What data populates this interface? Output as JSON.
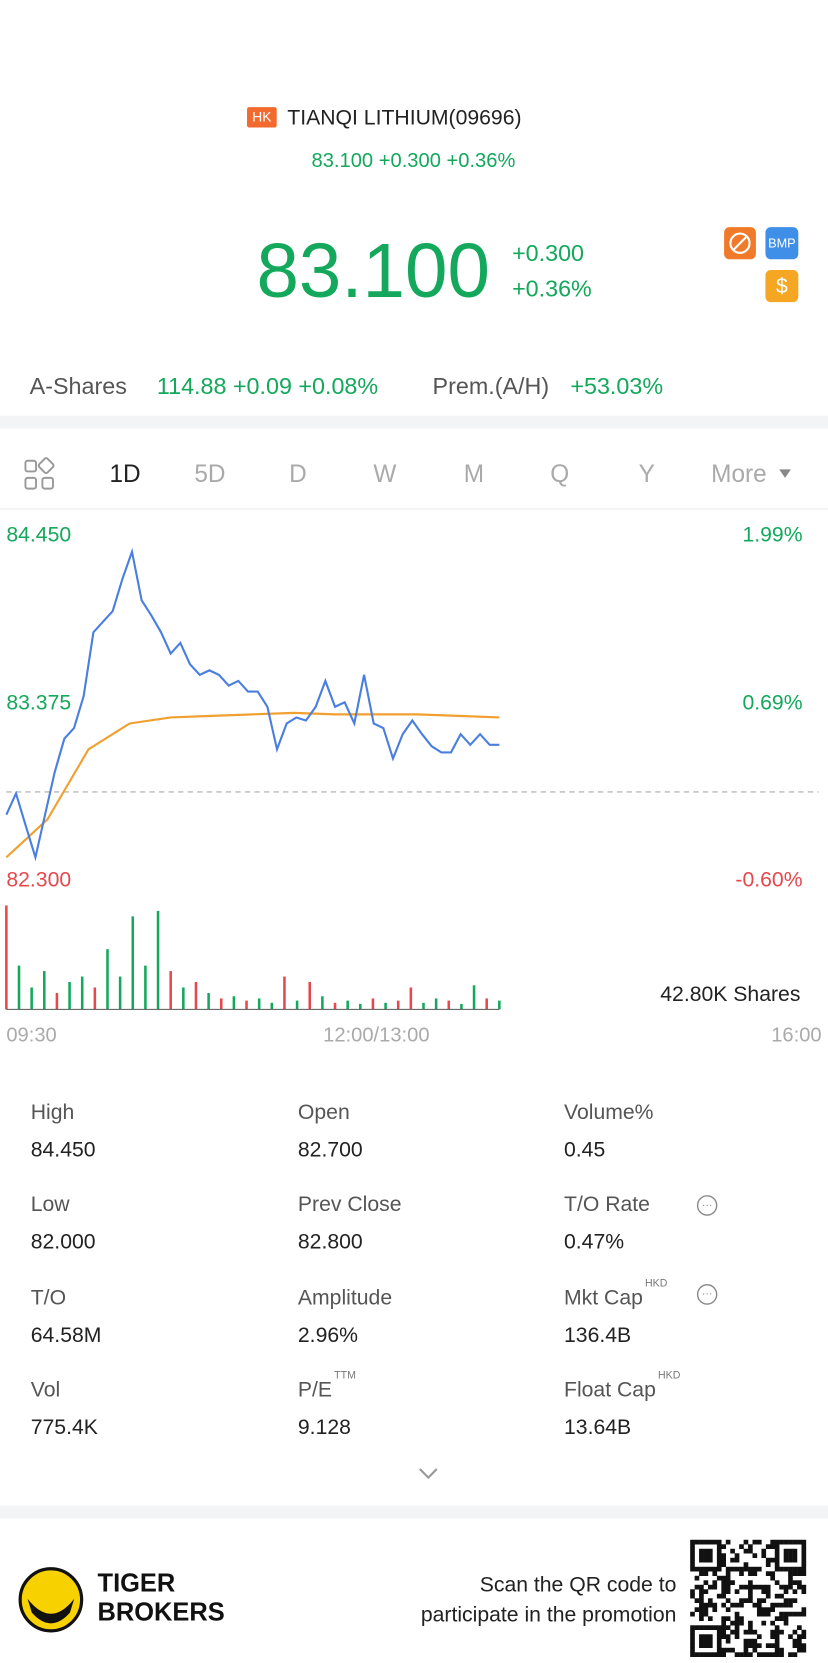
{
  "header": {
    "exchange_badge": "HK",
    "title": "TIANQI LITHIUM(09696)",
    "subtitle": "83.100 +0.300 +0.36%"
  },
  "quote": {
    "price": "83.100",
    "change": "+0.300",
    "change_pct": "+0.36%",
    "badge": "BMP",
    "dollar_badge": "$"
  },
  "a_shares": {
    "label": "A-Shares",
    "value": "114.88 +0.09 +0.08%",
    "premium_label": "Prem.(A/H)",
    "premium_value": "+53.03%"
  },
  "tabs": [
    "1D",
    "5D",
    "D",
    "W",
    "M",
    "Q",
    "Y",
    "More"
  ],
  "chart_data": {
    "type": "line",
    "ylim": [
      82.3,
      84.45
    ],
    "yticks": [
      {
        "value": 84.45,
        "label": "84.450"
      },
      {
        "value": 83.375,
        "label": "83.375"
      },
      {
        "value": 82.3,
        "label": "82.300"
      }
    ],
    "y2lim": [
      -0.6,
      1.99
    ],
    "y2ticks": [
      {
        "value": 1.99,
        "label": "1.99%"
      },
      {
        "value": 0.69,
        "label": "0.69%"
      },
      {
        "value": -0.6,
        "label": "-0.60%"
      }
    ],
    "reference_line": 82.8,
    "x_labels": [
      "09:30",
      "12:00/13:00",
      "16:00"
    ],
    "series": [
      {
        "name": "Price",
        "color": "#4a7fe0",
        "values": [
          82.65,
          82.79,
          82.58,
          82.37,
          82.65,
          82.93,
          83.15,
          83.22,
          83.43,
          83.85,
          83.92,
          83.99,
          84.2,
          84.38,
          84.06,
          83.96,
          83.85,
          83.71,
          83.78,
          83.64,
          83.57,
          83.6,
          83.57,
          83.5,
          83.53,
          83.46,
          83.46,
          83.36,
          83.08,
          83.25,
          83.29,
          83.27,
          83.36,
          83.53,
          83.36,
          83.39,
          83.25,
          83.57,
          83.25,
          83.22,
          83.02,
          83.18,
          83.27,
          83.18,
          83.1,
          83.06,
          83.06,
          83.18,
          83.11,
          83.18,
          83.11,
          83.11
        ]
      },
      {
        "name": "Average",
        "color": "#f0a030",
        "values": [
          82.37,
          82.62,
          83.08,
          83.25,
          83.29,
          83.3,
          83.31,
          83.32,
          83.31,
          83.31,
          83.31,
          83.3,
          83.29
        ]
      }
    ],
    "volume_label": "42.80K Shares",
    "volume": {
      "values": [
        95,
        40,
        20,
        35,
        15,
        25,
        30,
        20,
        55,
        30,
        85,
        40,
        90,
        35,
        20,
        25,
        15,
        10,
        12,
        8,
        10,
        6,
        30,
        8,
        25,
        12,
        6,
        8,
        5,
        10,
        6,
        8,
        20,
        6,
        10,
        8,
        5,
        22,
        10,
        8
      ],
      "colors": [
        "#e5484d",
        "#13a85b",
        "#13a85b",
        "#13a85b",
        "#e5484d",
        "#13a85b",
        "#13a85b",
        "#e5484d",
        "#13a85b",
        "#13a85b",
        "#13a85b",
        "#13a85b",
        "#13a85b",
        "#e5484d",
        "#13a85b",
        "#e5484d",
        "#13a85b",
        "#e5484d",
        "#13a85b",
        "#e5484d",
        "#13a85b",
        "#13a85b",
        "#e5484d",
        "#13a85b",
        "#e5484d",
        "#13a85b",
        "#e5484d",
        "#13a85b",
        "#13a85b",
        "#e5484d",
        "#13a85b",
        "#e5484d",
        "#e5484d",
        "#13a85b",
        "#13a85b",
        "#e5484d",
        "#13a85b",
        "#13a85b",
        "#e5484d",
        "#13a85b"
      ]
    }
  },
  "stats": [
    {
      "label": "High",
      "value": "84.450"
    },
    {
      "label": "Open",
      "value": "82.700"
    },
    {
      "label": "Volume%",
      "value": "0.45"
    },
    {
      "label": "Low",
      "value": "82.000"
    },
    {
      "label": "Prev Close",
      "value": "82.800"
    },
    {
      "label": "T/O Rate",
      "value": "0.47%"
    },
    {
      "label": "T/O",
      "value": "64.58M"
    },
    {
      "label": "Amplitude",
      "value": "2.96%"
    },
    {
      "label": "Mkt Cap",
      "sup": "HKD",
      "value": "136.4B"
    },
    {
      "label": "Vol",
      "value": "775.4K"
    },
    {
      "label": "P/E",
      "sup": "TTM",
      "value": "9.128"
    },
    {
      "label": "Float Cap",
      "sup": "HKD",
      "value": "13.64B"
    }
  ],
  "footer": {
    "brand_line1": "TIGER",
    "brand_line2": "BROKERS",
    "promo_line1": "Scan the QR code to",
    "promo_line2": "participate in the promotion"
  }
}
